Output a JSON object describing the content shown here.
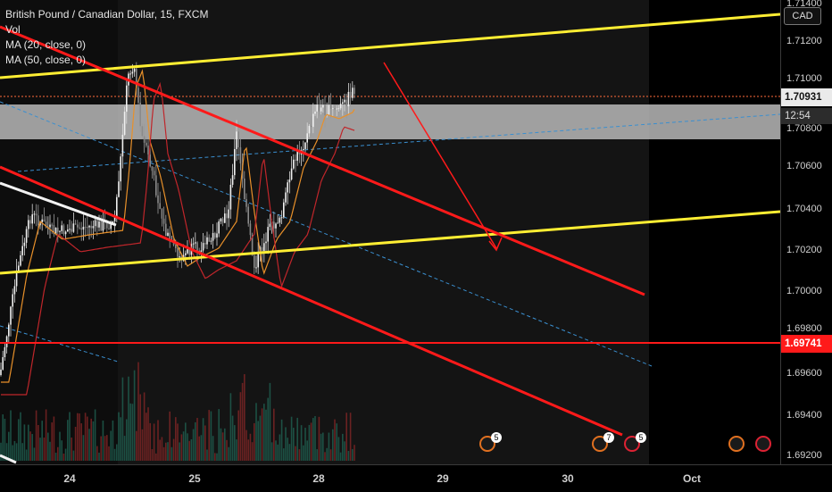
{
  "header": {
    "symbol_line": "British Pound / Canadian Dollar, 15, FXCM",
    "vol_label": "Vol",
    "ma20_label": "MA (20, close, 0)",
    "ma50_label": "MA (50, close, 0)"
  },
  "currency_button": "CAD",
  "price_axis": {
    "ticks": [
      "1.71400",
      "1.71200",
      "1.71000",
      "1.70800",
      "1.70600",
      "1.70400",
      "1.70200",
      "1.70000",
      "1.69800",
      "1.69600",
      "1.69400",
      "1.69200"
    ],
    "current_price_label": "1.70931",
    "countdown_label": "12:54",
    "level_label": "1.69741"
  },
  "time_axis": {
    "labels": [
      "24",
      "25",
      "28",
      "29",
      "30",
      "Oct"
    ]
  },
  "events": [
    {
      "flag": "uk-flag-icon",
      "count": "5"
    },
    {
      "flag": "uk-flag-icon",
      "count": "7"
    },
    {
      "flag": "ca-flag-icon",
      "count": "5"
    },
    {
      "flag": "uk-flag-icon",
      "count": ""
    },
    {
      "flag": "ca-flag-icon",
      "count": ""
    }
  ],
  "colors": {
    "background": "#000000",
    "trend_yellow": "#ffee33",
    "channel_red": "#ff1a1a",
    "candle_white": "#e6e6e6",
    "ma20": "#e8902a",
    "ma50": "#c0262b",
    "zone_gray": "#b8b8b8",
    "dashed_blue": "#3a8fd0"
  }
}
